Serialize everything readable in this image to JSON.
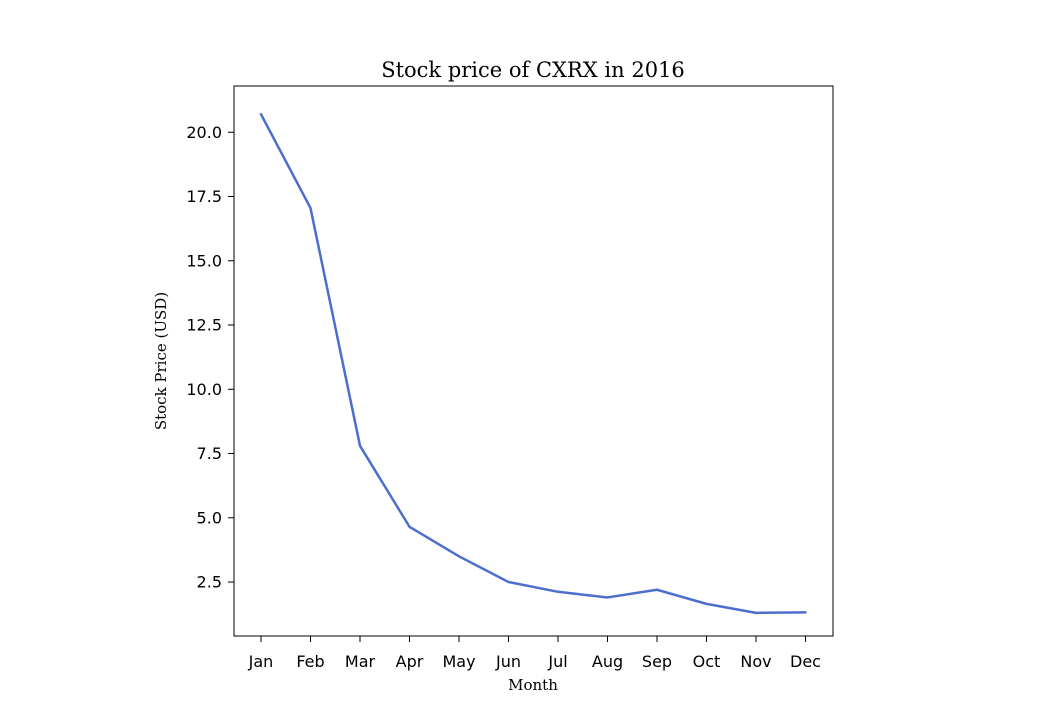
{
  "chart_data": {
    "type": "line",
    "title": "Stock price of CXRX in 2016",
    "xlabel": "Month",
    "ylabel": "Stock Price (USD)",
    "categories": [
      "Jan",
      "Feb",
      "Mar",
      "Apr",
      "May",
      "Jun",
      "Jul",
      "Aug",
      "Sep",
      "Oct",
      "Nov",
      "Dec"
    ],
    "series": [
      {
        "values": [
          20.7,
          17.05,
          7.8,
          4.65,
          3.5,
          2.5,
          2.12,
          1.9,
          2.2,
          1.65,
          1.3,
          1.32
        ],
        "color": "#4c6fce"
      }
    ],
    "ylim": [
      0.4,
      21.8
    ],
    "yticks": [
      2.5,
      5.0,
      7.5,
      10.0,
      12.5,
      15.0,
      17.5,
      20.0
    ],
    "ytick_labels": [
      "2.5",
      "5.0",
      "7.5",
      "10.0",
      "12.5",
      "15.0",
      "17.5",
      "20.0"
    ],
    "grid": false,
    "legend": "none"
  }
}
